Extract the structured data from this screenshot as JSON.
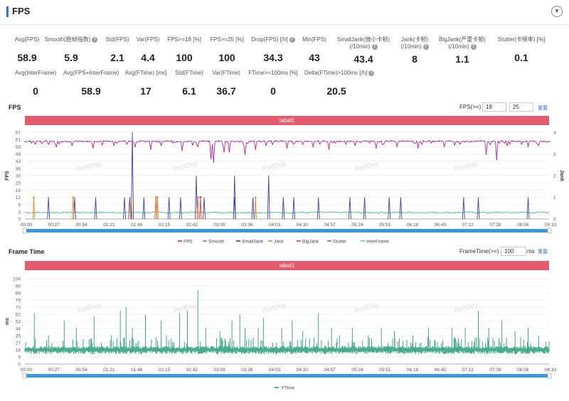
{
  "header": {
    "title": "FPS"
  },
  "stats_row1": [
    {
      "label": "Avg(FPS)",
      "value": "58.9",
      "help": false
    },
    {
      "label": "Smooth(稳帧指数)",
      "value": "5.9",
      "help": true
    },
    {
      "label": "Std(FPS)",
      "value": "2.1",
      "help": false
    },
    {
      "label": "Var(FPS)",
      "value": "4.4",
      "help": false
    },
    {
      "label": "FPS>=18 [%]",
      "value": "100",
      "help": false
    },
    {
      "label": "FPS>=25 [%]",
      "value": "100",
      "help": false
    },
    {
      "label": "Drop(FPS) [/h]",
      "value": "34.3",
      "help": true
    },
    {
      "label": "Min(FPS)",
      "value": "43",
      "help": false
    },
    {
      "label": "SmallJank(微小卡顿)",
      "label2": "(/10min)",
      "value": "43.4",
      "help": true
    },
    {
      "label": "Jank(卡顿)",
      "label2": "(/10min)",
      "value": "8",
      "help": true
    },
    {
      "label": "BigJank(严重卡顿)",
      "label2": "(/10min)",
      "value": "1.1",
      "help": true
    },
    {
      "label": "Stutter(卡顿率) [%]",
      "value": "0.1",
      "help": false
    }
  ],
  "stats_row2": [
    {
      "label": "Avg(InterFrame)",
      "value": "0"
    },
    {
      "label": "Avg(FPS+InterFrame)",
      "value": "58.9"
    },
    {
      "label": "Avg(FTime) [ms]",
      "value": "17"
    },
    {
      "label": "Std(FTime)",
      "value": "6.1"
    },
    {
      "label": "Var(FTime)",
      "value": "36.7"
    },
    {
      "label": "FTime>=100ms [%]",
      "value": "0"
    },
    {
      "label": "Delta(FTime)>100ms [/h]",
      "value": "20.5",
      "help": true
    }
  ],
  "fps_chart": {
    "section_title": "FPS",
    "threshold_label": "FPS(>=)",
    "threshold1": "18",
    "threshold2": "25",
    "reset_label": "重置",
    "label_bar": "label1",
    "y_axis_title": "FPS",
    "y2_axis_title": "Jank",
    "watermark": "PerfDog"
  },
  "ft_chart": {
    "section_title": "Frame Time",
    "threshold_label": "FrameTime(>=)",
    "threshold": "100",
    "unit": "ms",
    "reset_label": "重置",
    "label_bar": "label1",
    "y_axis_title": "ms",
    "legend": "FTime",
    "watermark": "PerfDog"
  },
  "colors": {
    "fps": "#b5239f",
    "smooth": "#3bb464",
    "small_jank": "#3e3fb6",
    "jank": "#e8822c",
    "big_jank": "#e23b3b",
    "stutter": "#3b83cf",
    "interframe": "#4cc7c7",
    "ftime": "#2aa07a",
    "label_bar": "#e65a6e",
    "scrollbar": "#3a98e0"
  },
  "chart_data": [
    {
      "type": "line",
      "x_ticks": [
        "00:00",
        "00:27",
        "00:54",
        "01:21",
        "01:48",
        "02:15",
        "02:42",
        "03:09",
        "03:36",
        "04:03",
        "04:30",
        "04:57",
        "05:24",
        "05:51",
        "06:18",
        "06:45",
        "07:12",
        "07:39",
        "08:06",
        "08:33"
      ],
      "y_ticks": [
        "0",
        "3",
        "6",
        "12",
        "18",
        "25",
        "30",
        "36",
        "43",
        "49",
        "55",
        "61",
        "67"
      ],
      "y2_ticks": [
        "0",
        "1",
        "2",
        "3",
        "4"
      ],
      "ylim": [
        0,
        67
      ],
      "y2lim": [
        0,
        4
      ],
      "series": [
        {
          "name": "FPS",
          "baseline": 60,
          "dips": [
            [
              0.02,
              58
            ],
            [
              0.06,
              56
            ],
            [
              0.09,
              57
            ],
            [
              0.13,
              55
            ],
            [
              0.17,
              57
            ],
            [
              0.21,
              56
            ],
            [
              0.24,
              54
            ],
            [
              0.26,
              57
            ],
            [
              0.3,
              53
            ],
            [
              0.33,
              56
            ],
            [
              0.355,
              46
            ],
            [
              0.36,
              44
            ],
            [
              0.38,
              52
            ],
            [
              0.39,
              52
            ],
            [
              0.42,
              50
            ],
            [
              0.44,
              54
            ],
            [
              0.46,
              57
            ],
            [
              0.5,
              55
            ],
            [
              0.55,
              56
            ],
            [
              0.58,
              54
            ],
            [
              0.63,
              57
            ],
            [
              0.67,
              55
            ],
            [
              0.71,
              56
            ],
            [
              0.75,
              55
            ],
            [
              0.8,
              56
            ],
            [
              0.83,
              58
            ],
            [
              0.88,
              50
            ],
            [
              0.9,
              46
            ],
            [
              0.92,
              57
            ],
            [
              0.96,
              56
            ],
            [
              0.98,
              57
            ]
          ]
        },
        {
          "name": "Smooth",
          "baseline": 5
        },
        {
          "name": "SmallJank",
          "spikes": [
            [
              0.045,
              1
            ],
            [
              0.095,
              1
            ],
            [
              0.135,
              1
            ],
            [
              0.19,
              1
            ],
            [
              0.2,
              1
            ],
            [
              0.205,
              4
            ],
            [
              0.227,
              1
            ],
            [
              0.25,
              1
            ],
            [
              0.275,
              1
            ],
            [
              0.297,
              1
            ],
            [
              0.327,
              2
            ],
            [
              0.342,
              1
            ],
            [
              0.4,
              2
            ],
            [
              0.4,
              1
            ],
            [
              0.435,
              1
            ],
            [
              0.465,
              2
            ],
            [
              0.493,
              1
            ],
            [
              0.513,
              1
            ],
            [
              0.56,
              1
            ],
            [
              0.62,
              1
            ],
            [
              0.648,
              1
            ],
            [
              0.695,
              1
            ],
            [
              0.717,
              1
            ],
            [
              0.837,
              1
            ],
            [
              0.865,
              1
            ],
            [
              0.96,
              1
            ]
          ]
        },
        {
          "name": "Jank",
          "spikes": [
            [
              0.017,
              1
            ],
            [
              0.092,
              1
            ],
            [
              0.203,
              1
            ],
            [
              0.25,
              1
            ],
            [
              0.253,
              1
            ],
            [
              0.33,
              1
            ],
            [
              0.44,
              1
            ]
          ]
        },
        {
          "name": "BigJank",
          "spikes": [
            [
              0.335,
              1
            ]
          ]
        },
        {
          "name": "Stutter",
          "baseline": 0
        },
        {
          "name": "InterFrame",
          "baseline": 0
        }
      ]
    },
    {
      "type": "bar",
      "x_ticks": [
        "00:00",
        "00:27",
        "00:54",
        "01:21",
        "01:48",
        "02:15",
        "02:42",
        "03:09",
        "03:36",
        "04:03",
        "04:30",
        "04:57",
        "05:24",
        "05:51",
        "06:18",
        "06:45",
        "07:12",
        "07:39",
        "08:06",
        "08:33"
      ],
      "y_ticks": [
        "0",
        "9",
        "18",
        "27",
        "35",
        "44",
        "53",
        "62",
        "70",
        "79",
        "88",
        "96",
        "104"
      ],
      "ylim": [
        0,
        104
      ],
      "series": [
        {
          "name": "FTime",
          "band": [
            16,
            19
          ],
          "spikes": [
            [
              0.018,
              62
            ],
            [
              0.045,
              35
            ],
            [
              0.075,
              53
            ],
            [
              0.098,
              44
            ],
            [
              0.132,
              58
            ],
            [
              0.165,
              35
            ],
            [
              0.182,
              65
            ],
            [
              0.193,
              70
            ],
            [
              0.205,
              44
            ],
            [
              0.23,
              60
            ],
            [
              0.26,
              53
            ],
            [
              0.27,
              35
            ],
            [
              0.295,
              62
            ],
            [
              0.31,
              65
            ],
            [
              0.33,
              90
            ],
            [
              0.345,
              44
            ],
            [
              0.372,
              40
            ],
            [
              0.395,
              53
            ],
            [
              0.41,
              60
            ],
            [
              0.42,
              44
            ],
            [
              0.445,
              44
            ],
            [
              0.455,
              56
            ],
            [
              0.49,
              44
            ],
            [
              0.51,
              53
            ],
            [
              0.53,
              40
            ],
            [
              0.56,
              62
            ],
            [
              0.585,
              44
            ],
            [
              0.6,
              35
            ],
            [
              0.625,
              44
            ],
            [
              0.655,
              35
            ],
            [
              0.68,
              44
            ],
            [
              0.705,
              40
            ],
            [
              0.74,
              35
            ],
            [
              0.77,
              44
            ],
            [
              0.815,
              44
            ],
            [
              0.84,
              44
            ],
            [
              0.865,
              65
            ],
            [
              0.885,
              44
            ],
            [
              0.91,
              53
            ],
            [
              0.935,
              40
            ],
            [
              0.96,
              44
            ],
            [
              0.98,
              35
            ]
          ]
        }
      ]
    }
  ]
}
